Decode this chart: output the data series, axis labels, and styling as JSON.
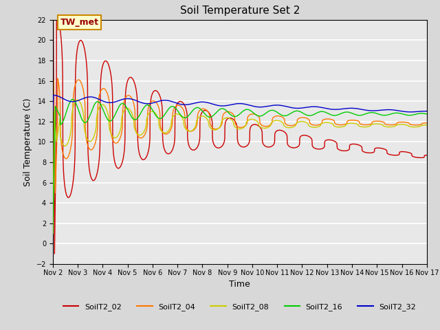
{
  "title": "Soil Temperature Set 2",
  "xlabel": "Time",
  "ylabel": "Soil Temperature (C)",
  "xlim": [
    0,
    15
  ],
  "ylim": [
    -2,
    22
  ],
  "yticks": [
    -2,
    0,
    2,
    4,
    6,
    8,
    10,
    12,
    14,
    16,
    18,
    20,
    22
  ],
  "xtick_labels": [
    "Nov 2",
    "Nov 3",
    "Nov 4",
    "Nov 5",
    "Nov 6",
    "Nov 7",
    "Nov 8",
    "Nov 9",
    "Nov 10",
    "Nov 11",
    "Nov 12",
    "Nov 13",
    "Nov 14",
    "Nov 15",
    "Nov 16",
    "Nov 17"
  ],
  "xtick_positions": [
    0,
    1,
    2,
    3,
    4,
    5,
    6,
    7,
    8,
    9,
    10,
    11,
    12,
    13,
    14,
    15
  ],
  "colors": {
    "SoilT2_02": "#cc0000",
    "SoilT2_04": "#ff7700",
    "SoilT2_08": "#cccc00",
    "SoilT2_16": "#00cc00",
    "SoilT2_32": "#0000cc"
  },
  "annotation_text": "TW_met",
  "background_color": "#e8e8e8",
  "grid_color": "#ffffff",
  "legend_labels": [
    "SoilT2_02",
    "SoilT2_04",
    "SoilT2_08",
    "SoilT2_16",
    "SoilT2_32"
  ]
}
